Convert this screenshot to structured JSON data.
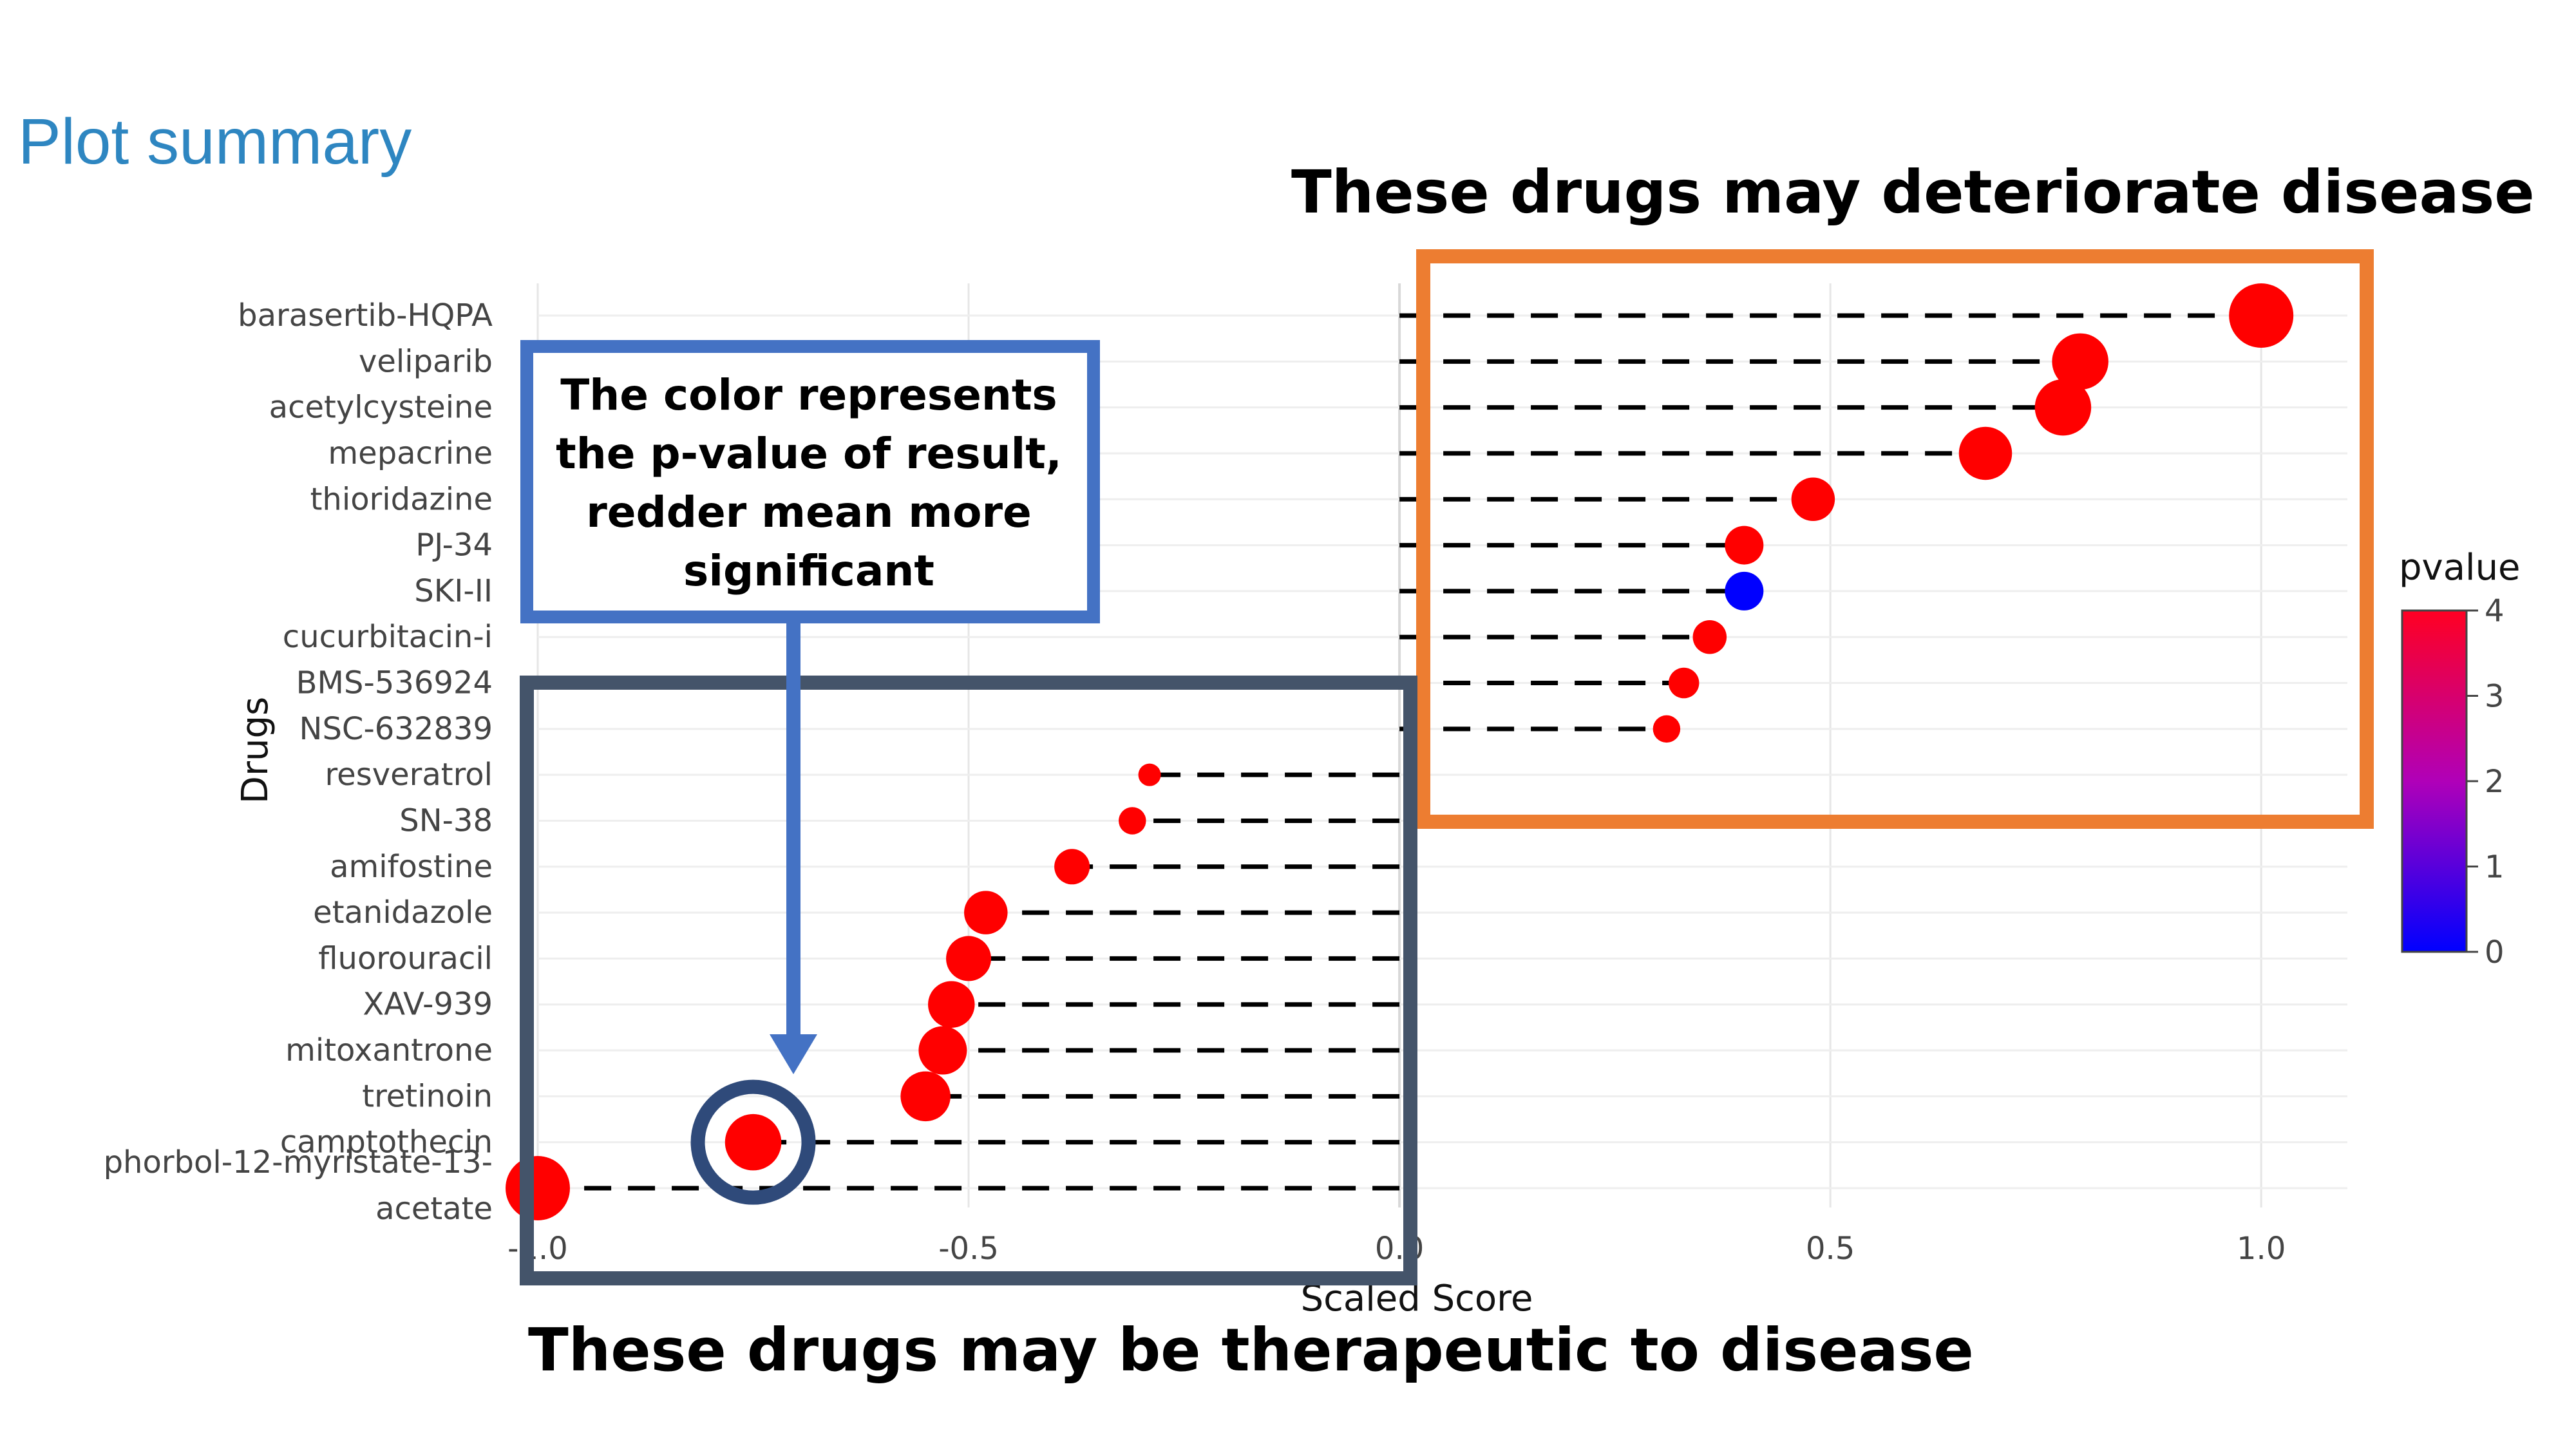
{
  "page": {
    "title": "Plot summary"
  },
  "annotations": {
    "top_heading": "These drugs may deteriorate disease",
    "bottom_heading": "These drugs may be therapeutic to disease",
    "color_note": [
      "The color represents",
      "the p-value of result,",
      "redder mean more",
      "significant"
    ],
    "colors": {
      "deteriorate_box": "#ED7D31",
      "therapeutic_box": "#44546A",
      "note_box": "#4472C4"
    }
  },
  "chart_data": {
    "type": "scatter",
    "style": "lollipop",
    "xlabel": "Scaled Score",
    "ylabel": "Drugs",
    "xlim": [
      -1.0,
      1.1
    ],
    "xticks": [
      -1.0,
      -0.5,
      0.0,
      0.5,
      1.0
    ],
    "xtick_labels": [
      "-1.0",
      "-0.5",
      "0.0",
      "0.5",
      "1.0"
    ],
    "grid": true,
    "colorbar": {
      "title": "pvalue",
      "min": 0,
      "max": 4,
      "ticks": [
        0,
        1,
        2,
        3,
        4
      ],
      "low_color": "#0000FF",
      "high_color": "#FF0000"
    },
    "points": [
      {
        "drug": "barasertib-HQPA",
        "score": 1.0,
        "pvalue": 4,
        "size": 40
      },
      {
        "drug": "veliparib",
        "score": 0.79,
        "pvalue": 4,
        "size": 35
      },
      {
        "drug": "acetylcysteine",
        "score": 0.77,
        "pvalue": 4,
        "size": 35
      },
      {
        "drug": "mepacrine",
        "score": 0.68,
        "pvalue": 4,
        "size": 33
      },
      {
        "drug": "thioridazine",
        "score": 0.48,
        "pvalue": 4,
        "size": 27
      },
      {
        "drug": "PJ-34",
        "score": 0.4,
        "pvalue": 4,
        "size": 24
      },
      {
        "drug": "SKI-II",
        "score": 0.4,
        "pvalue": 0,
        "size": 24
      },
      {
        "drug": "cucurbitacin-i",
        "score": 0.36,
        "pvalue": 4,
        "size": 21
      },
      {
        "drug": "BMS-536924",
        "score": 0.33,
        "pvalue": 4,
        "size": 19
      },
      {
        "drug": "NSC-632839",
        "score": 0.31,
        "pvalue": 4,
        "size": 17
      },
      {
        "drug": "resveratrol",
        "score": -0.29,
        "pvalue": 4,
        "size": 14
      },
      {
        "drug": "SN-38",
        "score": -0.31,
        "pvalue": 4,
        "size": 17
      },
      {
        "drug": "amifostine",
        "score": -0.38,
        "pvalue": 4,
        "size": 22
      },
      {
        "drug": "etanidazole",
        "score": -0.48,
        "pvalue": 4,
        "size": 27
      },
      {
        "drug": "fluorouracil",
        "score": -0.5,
        "pvalue": 4,
        "size": 28
      },
      {
        "drug": "XAV-939",
        "score": -0.52,
        "pvalue": 4,
        "size": 29
      },
      {
        "drug": "mitoxantrone",
        "score": -0.53,
        "pvalue": 4,
        "size": 30
      },
      {
        "drug": "tretinoin",
        "score": -0.55,
        "pvalue": 4,
        "size": 31
      },
      {
        "drug": "camptothecin",
        "score": -0.75,
        "pvalue": 4,
        "size": 35
      },
      {
        "drug": "phorbol-12-myristate-13-acetate",
        "score": -1.0,
        "pvalue": 4,
        "size": 40
      }
    ],
    "multiline_labels": {
      "phorbol-12-myristate-13-acetate": [
        "phorbol-12-myristate-13-",
        "acetate"
      ]
    },
    "highlighted_drug": "camptothecin"
  }
}
